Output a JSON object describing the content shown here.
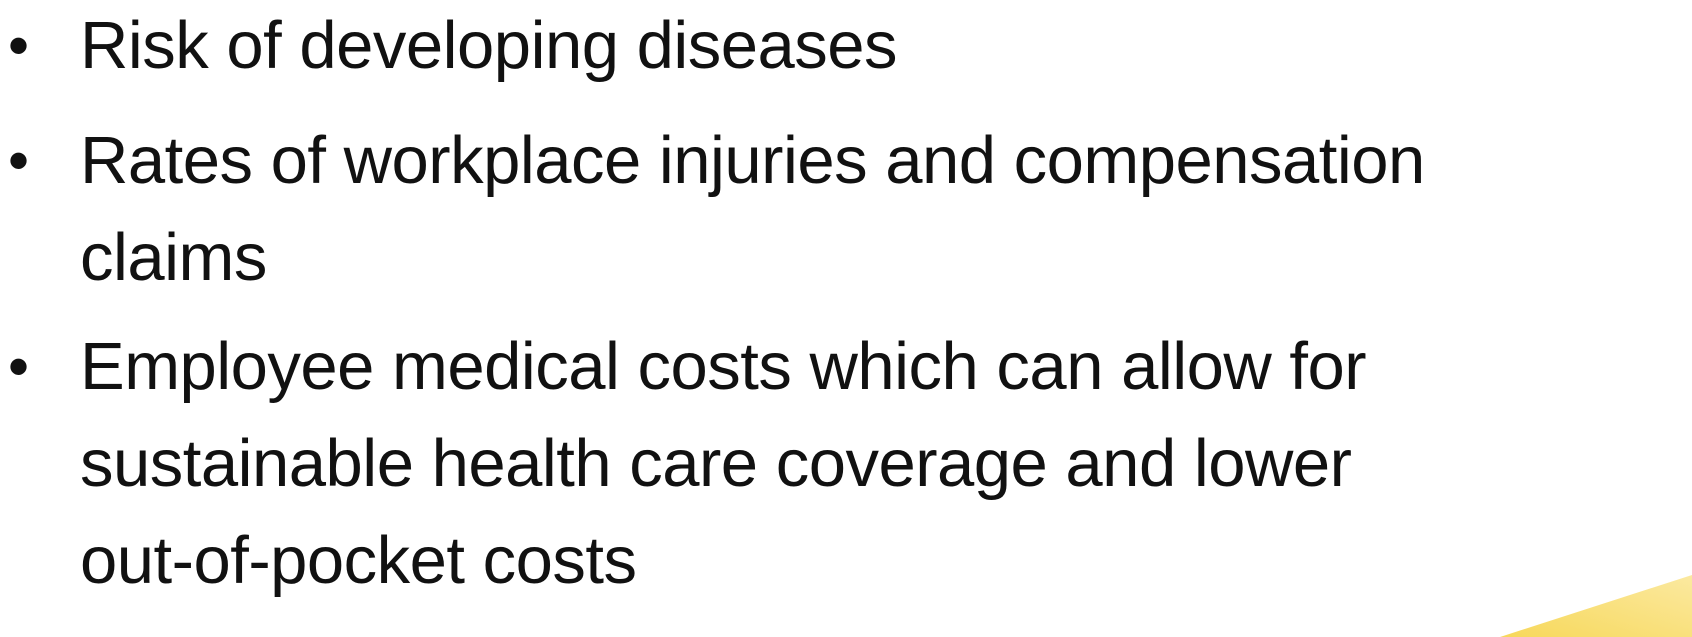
{
  "bullets": [
    {
      "lines": [
        "Risk of developing diseases"
      ]
    },
    {
      "lines": [
        "Rates of workplace injuries and compensation",
        "claims"
      ]
    },
    {
      "lines": [
        "Employee medical costs which can allow for",
        "sustainable health care coverage and lower",
        "out-of-pocket costs"
      ]
    }
  ]
}
